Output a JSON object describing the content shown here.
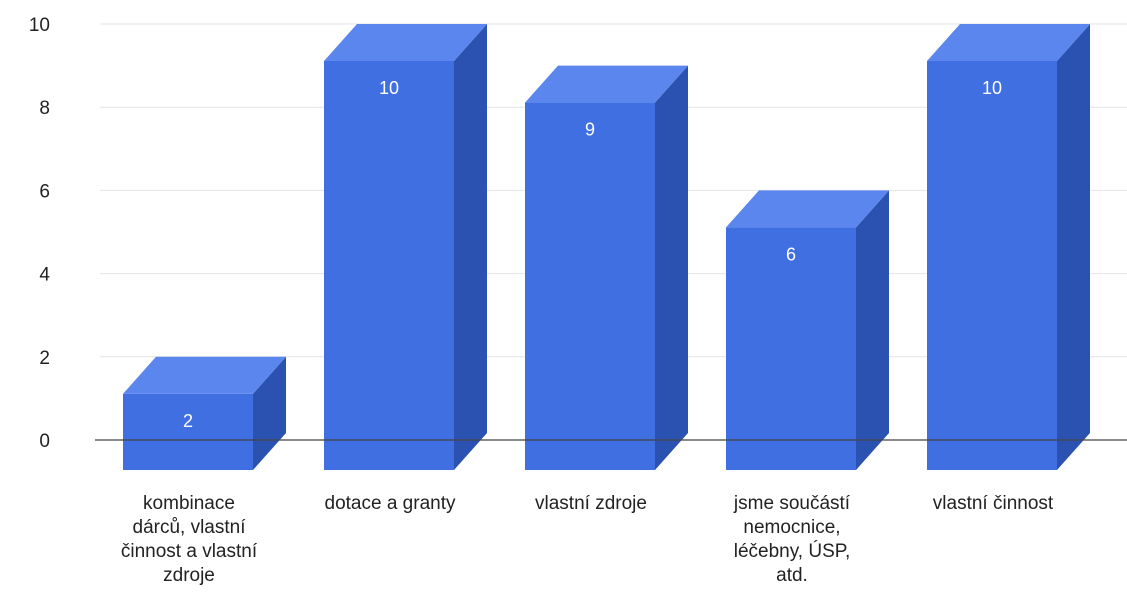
{
  "chart_data": {
    "type": "bar",
    "style": "3d",
    "title": "",
    "xlabel": "",
    "ylabel": "",
    "ylim": [
      0,
      10
    ],
    "yticks": [
      "0",
      "2",
      "4",
      "6",
      "8",
      "10"
    ],
    "grid": true,
    "legend": "none",
    "categories": [
      "kombinace dárců, vlastní činnost a vlastní zdroje",
      "dotace a granty",
      "vlastní zdroje",
      "jsme součástí nemocnice, léčebny, ÚSP, atd.",
      "vlastní činnost"
    ],
    "category_lines": [
      [
        "kombinace",
        "dárců, vlastní",
        "činnost a vlastní",
        "zdroje"
      ],
      [
        "dotace a granty"
      ],
      [
        "vlastní zdroje"
      ],
      [
        "jsme součástí",
        "nemocnice,",
        "léčebny, ÚSP,",
        "atd."
      ],
      [
        "vlastní činnost"
      ]
    ],
    "values": [
      2,
      10,
      9,
      6,
      10
    ],
    "data_labels": [
      "2",
      "10",
      "9",
      "6",
      "10"
    ],
    "colors": {
      "front": "#3f6fe0",
      "top": "#5a86ee",
      "side": "#2b52b0",
      "grid": "#e4e4e4",
      "axis": "#444444"
    }
  }
}
